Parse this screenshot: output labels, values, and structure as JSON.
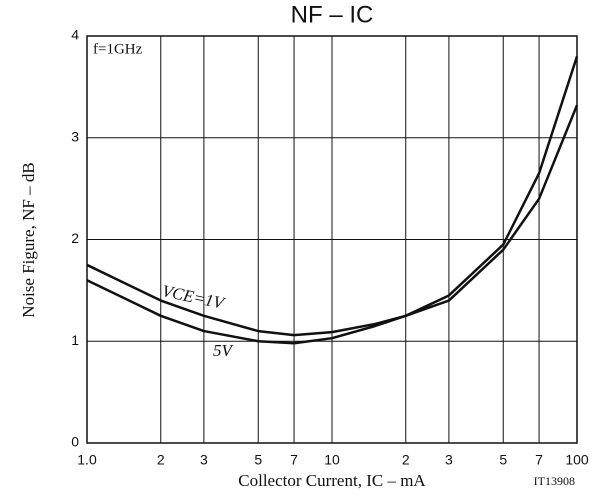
{
  "chart_data": {
    "type": "line",
    "title": "NF – IC",
    "xlabel": "Collector Current, IC – mA",
    "ylabel": "Noise Figure, NF – dB",
    "annotations": [
      "f=1GHz",
      "VCE=1V",
      "5V",
      "IT13908"
    ],
    "x": [
      1,
      2,
      3,
      5,
      7,
      10,
      15,
      20,
      30,
      50,
      70,
      100
    ],
    "series": [
      {
        "name": "VCE=1V",
        "color": "#111111",
        "values": [
          1.75,
          1.4,
          1.25,
          1.1,
          1.06,
          1.09,
          1.17,
          1.25,
          1.4,
          1.9,
          2.4,
          3.32
        ]
      },
      {
        "name": "5V",
        "color": "#111111",
        "values": [
          1.6,
          1.25,
          1.1,
          1.0,
          0.98,
          1.03,
          1.15,
          1.25,
          1.45,
          1.95,
          2.65,
          3.8
        ]
      }
    ],
    "xscale": "log",
    "xlim": [
      1,
      100
    ],
    "xticks": [
      {
        "value": 1,
        "label": "1.0"
      },
      2,
      3,
      5,
      7,
      10,
      {
        "value": 20,
        "label": "2"
      },
      {
        "value": 30,
        "label": "3"
      },
      {
        "value": 50,
        "label": "5"
      },
      {
        "value": 70,
        "label": "7"
      },
      100
    ],
    "ylim": [
      0,
      4
    ],
    "yticks": [
      0,
      1,
      2,
      3,
      4
    ],
    "grid": true
  }
}
